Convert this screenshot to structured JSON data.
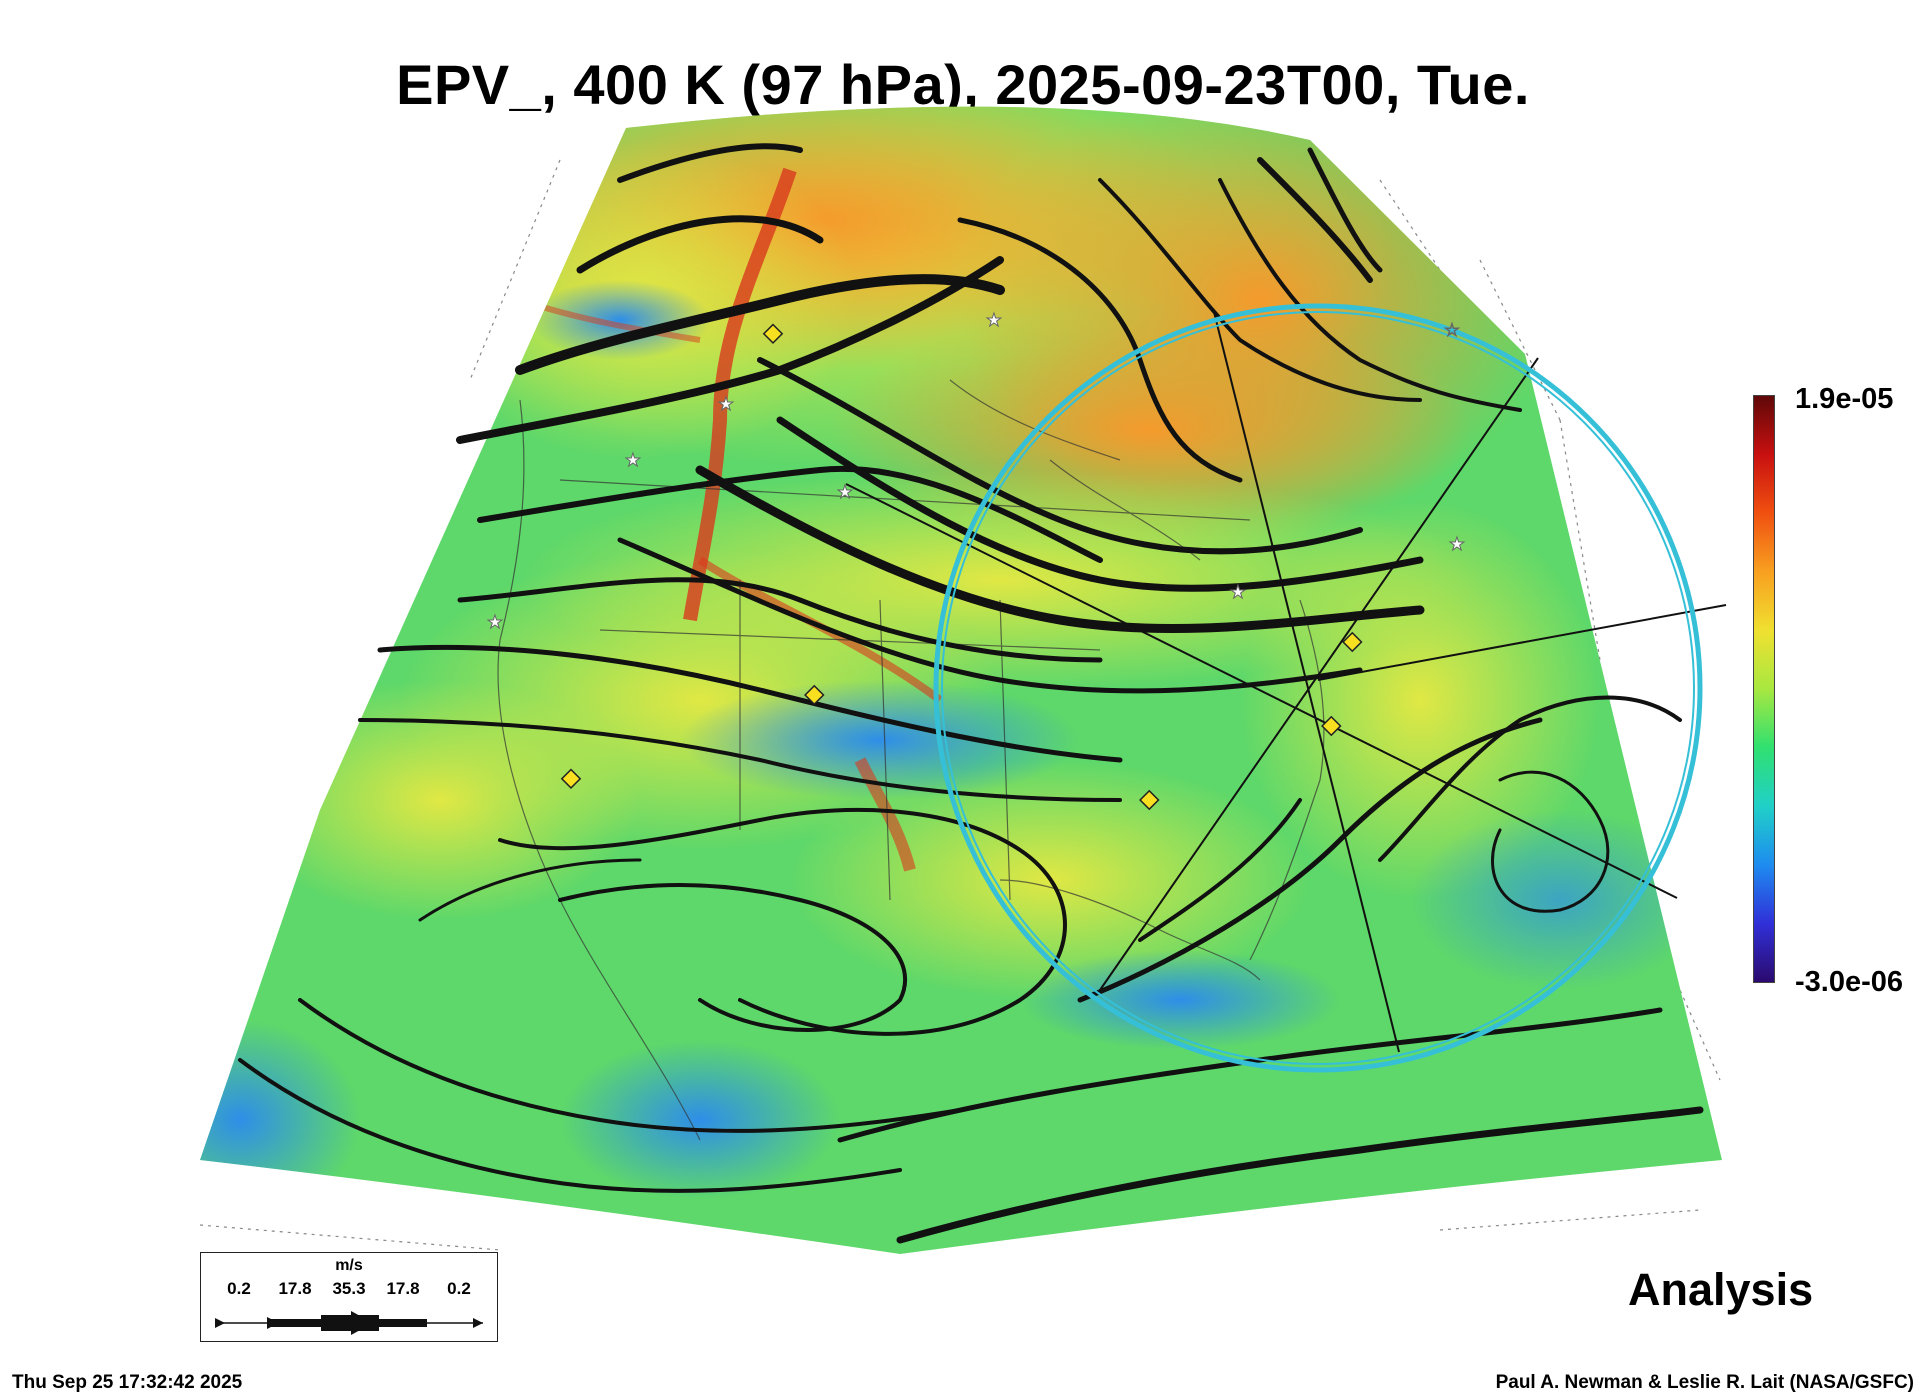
{
  "title": "EPV_, 400 K (97 hPa), 2025-09-23T00, Tue.",
  "colorbar": {
    "max_label": "1.9e-05",
    "min_label": "-3.0e-06",
    "colors": [
      "#2b0a6e",
      "#3030d8",
      "#1e8cf0",
      "#20d0c8",
      "#30e070",
      "#a8e840",
      "#f0e030",
      "#f8a020",
      "#f05010",
      "#c81010",
      "#600808"
    ]
  },
  "analysis_label": "Analysis",
  "footer": {
    "timestamp": "Thu Sep 25 17:32:42 2025",
    "credit": "Paul A. Newman & Leslie R. Lait (NASA/GSFC)"
  },
  "wind_legend": {
    "unit": "m/s",
    "values": [
      "0.2",
      "17.8",
      "35.3",
      "17.8",
      "0.2"
    ]
  },
  "map_colors": {
    "field_green": "#5ed86a",
    "field_yellow": "#d8e848",
    "field_orange": "#f4a834",
    "field_blue": "#3aa0e8",
    "field_red": "#d83a1e",
    "streamline": "#111111",
    "ring": "#36c0d8",
    "marker_fill": "#f8e020"
  }
}
